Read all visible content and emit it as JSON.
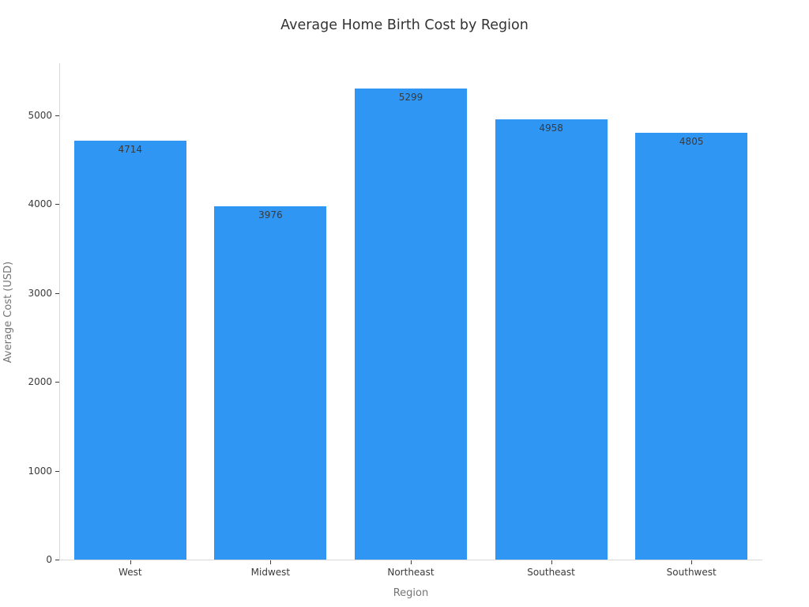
{
  "chart_data": {
    "type": "bar",
    "title": "Average Home Birth Cost by Region",
    "xlabel": "Region",
    "ylabel": "Average Cost (USD)",
    "categories": [
      "West",
      "Midwest",
      "Northeast",
      "Southeast",
      "Southwest"
    ],
    "values": [
      4714,
      3976,
      5299,
      4958,
      4805
    ],
    "bar_labels": [
      "4714",
      "3976",
      "5299",
      "4958",
      "4805"
    ],
    "yticks": [
      0,
      1000,
      2000,
      3000,
      4000,
      5000
    ],
    "ylim": [
      0,
      5590
    ],
    "grid": false,
    "legend": null,
    "bar_color": "#2f96f3",
    "title_color": "#333333",
    "tick_label_color": "#3b3b3b",
    "value_label_color": "#3a3a3a",
    "axis_label_color": "#757575",
    "spine_color": "#d9d9d9",
    "background_color": "#ffffff"
  }
}
